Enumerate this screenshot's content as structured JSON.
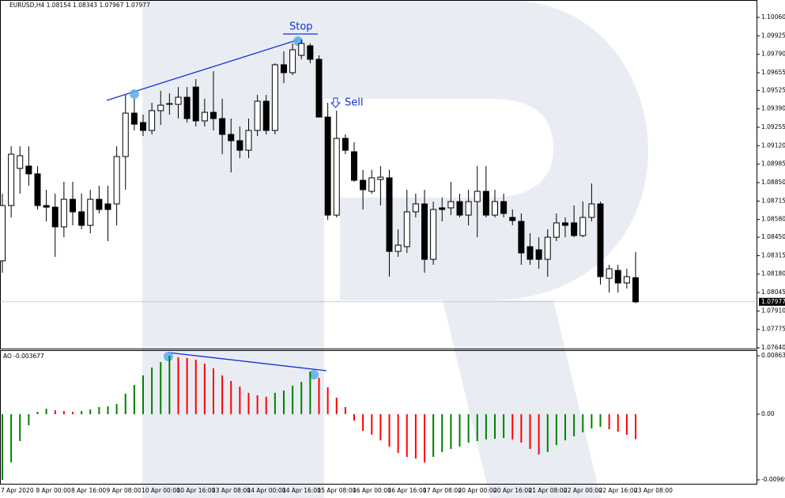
{
  "chart_data": [
    {
      "type": "candlestick",
      "title": "EURUSD,H4  1.08154 1.08343 1.07967 1.07977",
      "categories": [
        "7 Apr 2020",
        null,
        null,
        null,
        "8 Apr 00:00",
        null,
        null,
        null,
        "8 Apr 16:00",
        null,
        null,
        null,
        "9 Apr 08:00",
        null,
        null,
        null,
        "10 Apr 00:00",
        null,
        null,
        null,
        "10 Apr 16:00",
        null,
        null,
        null,
        "13 Apr 08:00",
        null,
        null,
        null,
        "14 Apr 00:00",
        null,
        null,
        null,
        "14 Apr 16:00",
        null,
        null,
        null,
        "15 Apr 08:00",
        null,
        null,
        null,
        "16 Apr 00:00",
        null,
        null,
        null,
        "16 Apr 16:00",
        null,
        null,
        null,
        "17 Apr 08:00",
        null,
        null,
        null,
        "20 Apr 00:00",
        null,
        null,
        null,
        "20 Apr 16:00",
        null,
        null,
        null,
        "21 Apr 08:00",
        null,
        null,
        null,
        "22 Apr 00:00",
        null,
        null,
        null,
        "22 Apr 16:00",
        null,
        null,
        null,
        "23 Apr 08:00"
      ],
      "open": [
        1.08277,
        1.08682,
        1.08954,
        1.08971,
        1.08914,
        1.08682,
        1.0867,
        1.08526,
        1.08728,
        1.08636,
        1.08537,
        1.08728,
        1.08694,
        1.08694,
        1.09041,
        1.09359,
        1.0929,
        1.09232,
        1.09377,
        1.09423,
        1.09423,
        1.09475,
        1.0955,
        1.09302,
        1.09365,
        1.09319,
        1.09203,
        1.09157,
        1.09087,
        1.09232,
        1.09446,
        1.09232,
        1.09713,
        1.09655,
        1.09782,
        1.09852,
        1.09753,
        1.0933,
        1.08612,
        1.09174,
        1.09076,
        1.08867,
        1.08786,
        1.08873,
        1.08885,
        1.08346,
        1.08381,
        1.08636,
        1.08694,
        1.08288,
        1.08665,
        1.08665,
        1.08711,
        1.08612,
        1.08711,
        1.08786,
        1.08612,
        1.08711,
        1.08595,
        1.08566,
        1.08381,
        1.08358,
        1.08288,
        1.0845,
        1.08555,
        1.08555,
        1.08462,
        1.08595,
        1.08694,
        1.08149,
        1.08207,
        1.08115,
        1.08154
      ],
      "high": [
        1.08769,
        1.09116,
        1.09116,
        1.09116,
        1.08971,
        1.08798,
        1.08769,
        1.08856,
        1.08856,
        1.08769,
        1.08798,
        1.08827,
        1.08827,
        1.09116,
        1.09493,
        1.09464,
        1.09348,
        1.09435,
        1.09522,
        1.09504,
        1.0955,
        1.0955,
        1.09608,
        1.09464,
        1.09666,
        1.09464,
        1.09319,
        1.09261,
        1.09319,
        1.09493,
        1.09493,
        1.09724,
        1.09811,
        1.09869,
        1.09898,
        1.09869,
        1.09782,
        1.09435,
        1.09377,
        1.09203,
        1.09145,
        1.08943,
        1.08943,
        1.08971,
        1.08943,
        1.08508,
        1.08798,
        1.08769,
        1.08798,
        1.08711,
        1.0874,
        1.08856,
        1.08769,
        1.08798,
        1.08971,
        1.08971,
        1.08798,
        1.08769,
        1.08653,
        1.08624,
        1.08479,
        1.0845,
        1.08508,
        1.08624,
        1.08595,
        1.08682,
        1.08711,
        1.08844,
        1.08711,
        1.08248,
        1.08248,
        1.08219,
        1.08343
      ],
      "low": [
        1.0819,
        1.08595,
        1.08769,
        1.08827,
        1.08653,
        1.08566,
        1.08306,
        1.0845,
        1.08537,
        1.08508,
        1.08479,
        1.08624,
        1.08421,
        1.08537,
        1.08798,
        1.09232,
        1.09191,
        1.09203,
        1.09273,
        1.09348,
        1.09319,
        1.0929,
        1.09261,
        1.09261,
        1.09232,
        1.09058,
        1.08925,
        1.09029,
        1.09029,
        1.09191,
        1.09203,
        1.09203,
        1.09579,
        1.09637,
        1.09753,
        1.09724,
        1.0933,
        1.08578,
        1.08595,
        1.09058,
        1.08856,
        1.08653,
        1.08769,
        1.08682,
        1.08161,
        1.08306,
        1.08335,
        1.08595,
        1.0819,
        1.08248,
        1.08566,
        1.08612,
        1.08595,
        1.08537,
        1.0845,
        1.08595,
        1.08595,
        1.08595,
        1.08537,
        1.08248,
        1.08248,
        1.08219,
        1.08161,
        1.08421,
        1.0845,
        1.0845,
        1.0845,
        1.08566,
        1.08103,
        1.08045,
        1.08045,
        1.08074,
        1.07967
      ],
      "close": [
        1.08682,
        1.09058,
        1.09047,
        1.08914,
        1.08682,
        1.0867,
        1.08526,
        1.08728,
        1.08636,
        1.08537,
        1.08728,
        1.08653,
        1.08653,
        1.09041,
        1.09359,
        1.09278,
        1.09232,
        1.09377,
        1.09417,
        1.09429,
        1.09475,
        1.09319,
        1.09302,
        1.09365,
        1.09319,
        1.09203,
        1.09157,
        1.09087,
        1.09232,
        1.09446,
        1.09232,
        1.09713,
        1.09655,
        1.09823,
        1.09869,
        1.09753,
        1.0933,
        1.08612,
        1.09174,
        1.09087,
        1.08867,
        1.08798,
        1.08885,
        1.0889,
        1.08346,
        1.08392,
        1.08636,
        1.08694,
        1.08288,
        1.08653,
        1.08653,
        1.08711,
        1.08612,
        1.08711,
        1.08786,
        1.08612,
        1.08711,
        1.08624,
        1.08572,
        1.08335,
        1.08288,
        1.08288,
        1.0845,
        1.08555,
        1.08537,
        1.08462,
        1.08595,
        1.08694,
        1.08161,
        1.08219,
        1.08115,
        1.08161,
        1.07977
      ],
      "up_color": "#ffffff",
      "down_color": "#000000",
      "ylim": [
        1.0764,
        1.1006
      ],
      "yticks": [
        {
          "value": 1.1006,
          "label": "1.10060"
        },
        1.09925,
        {
          "value": 1.0979,
          "label": "1.09790"
        },
        1.09655,
        1.09525,
        {
          "value": 1.0939,
          "label": "1.09390"
        },
        1.09255,
        {
          "value": 1.0912,
          "label": "1.09120"
        },
        1.08985,
        {
          "value": 1.0885,
          "label": "1.08850"
        },
        1.08715,
        {
          "value": 1.0858,
          "label": "1.08580"
        },
        {
          "value": 1.0845,
          "label": "1.08450"
        },
        1.08315,
        {
          "value": 1.0818,
          "label": "1.08180"
        },
        1.08045,
        {
          "value": 1.0791,
          "label": "1.07910"
        },
        1.07775,
        {
          "value": 1.0764,
          "label": "1.07640"
        }
      ],
      "last_price": 1.07977,
      "annotations": [
        "Stop",
        "Sell"
      ]
    },
    {
      "type": "bar",
      "title": "AO -0.003677",
      "values": [
        -0.00969,
        -0.00712,
        -0.00397,
        -0.00163,
        0.00035,
        0.00082,
        0.00058,
        0.00047,
        0.00035,
        0.00047,
        0.0007,
        0.00105,
        0.00117,
        0.00152,
        0.00303,
        0.00432,
        0.00572,
        0.00689,
        0.0077,
        0.00863,
        0.0084,
        0.00829,
        0.00805,
        0.00747,
        0.00677,
        0.00572,
        0.0049,
        0.00408,
        0.00315,
        0.0028,
        0.00257,
        0.00315,
        0.0035,
        0.0042,
        0.00478,
        0.0063,
        0.00537,
        0.00397,
        0.00245,
        0.00105,
        -0.00093,
        -0.00245,
        -0.00303,
        -0.00385,
        -0.00478,
        -0.00572,
        -0.0063,
        -0.00654,
        -0.00712,
        -0.0063,
        -0.0056,
        -0.00513,
        -0.00478,
        -0.0042,
        -0.00397,
        -0.00373,
        -0.00362,
        -0.0035,
        -0.00373,
        -0.0042,
        -0.00513,
        -0.00595,
        -0.0056,
        -0.00455,
        -0.00385,
        -0.00327,
        -0.00268,
        -0.0021,
        -0.00187,
        -0.00222,
        -0.00257,
        -0.00303,
        -0.003677
      ],
      "up_color": "#008000",
      "down_color": "#ff0000",
      "ylim": [
        -0.00969,
        0.008635
      ],
      "yticks": [
        0.008635,
        {
          "value": 0,
          "label": "0.00"
        },
        -0.00969
      ]
    }
  ]
}
